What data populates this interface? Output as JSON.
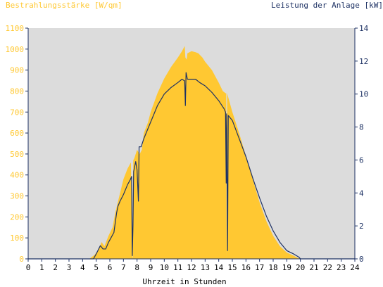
{
  "chart_data": {
    "type": "area",
    "title_left": "Bestrahlungsstärke [W/qm]",
    "title_right": "Leistung der Anlage [kW]",
    "xlabel": "Uhrzeit in Stunden",
    "xlim": [
      0,
      24
    ],
    "x_ticks": [
      "0",
      "1",
      "2",
      "3",
      "4",
      "5",
      "6",
      "7",
      "8",
      "9",
      "10",
      "11",
      "12",
      "13",
      "14",
      "15",
      "16",
      "17",
      "18",
      "19",
      "20",
      "21",
      "22",
      "23",
      "24"
    ],
    "y_left": {
      "label": "Bestrahlungsstärke [W/qm]",
      "ylim": [
        0,
        1100
      ],
      "ticks": [
        "0",
        "100",
        "200",
        "300",
        "400",
        "500",
        "600",
        "700",
        "800",
        "900",
        "1000",
        "1100"
      ]
    },
    "y_right": {
      "label": "Leistung der Anlage [kW]",
      "ylim": [
        0,
        14
      ],
      "ticks": [
        "0",
        "2",
        "4",
        "6",
        "8",
        "10",
        "12",
        "14"
      ]
    },
    "grid": false,
    "colors": {
      "plot_bg": "#dcdcdc",
      "irradiance": "#ffc832",
      "power": "#1e3264",
      "axis": "#1e3264"
    },
    "series": [
      {
        "name": "Bestrahlungsstärke [W/qm]",
        "axis": "left",
        "style": "area",
        "x": [
          0,
          4.5,
          4.9,
          5.2,
          5.4,
          5.6,
          5.9,
          6.2,
          6.4,
          6.7,
          7.0,
          7.3,
          7.55,
          7.65,
          7.68,
          7.72,
          7.8,
          8.0,
          8.2,
          8.35,
          8.5,
          8.8,
          9.0,
          9.5,
          10.0,
          10.5,
          11.0,
          11.3,
          11.5,
          11.55,
          11.65,
          11.7,
          12.0,
          12.3,
          12.5,
          12.8,
          13.0,
          13.5,
          14.0,
          14.3,
          14.5,
          14.55,
          14.58,
          14.62,
          14.7,
          15.0,
          15.5,
          16.0,
          16.5,
          17.0,
          17.5,
          18.0,
          18.5,
          19.0,
          19.5,
          19.8,
          20.0,
          20.2,
          24
        ],
        "values": [
          0,
          0,
          20,
          50,
          80,
          60,
          110,
          150,
          220,
          300,
          380,
          430,
          460,
          10,
          0,
          470,
          480,
          520,
          500,
          520,
          600,
          650,
          700,
          790,
          860,
          915,
          960,
          990,
          1015,
          960,
          950,
          980,
          990,
          985,
          980,
          960,
          940,
          900,
          840,
          800,
          790,
          790,
          10,
          790,
          770,
          700,
          600,
          490,
          380,
          270,
          180,
          110,
          60,
          30,
          15,
          5,
          0,
          0,
          0
        ]
      },
      {
        "name": "Leistung der Anlage [kW]",
        "axis": "right",
        "style": "line",
        "x": [
          0,
          4.8,
          5.0,
          5.3,
          5.5,
          5.7,
          5.9,
          6.1,
          6.3,
          6.5,
          6.6,
          6.75,
          7.0,
          7.3,
          7.5,
          7.6,
          7.65,
          7.7,
          7.75,
          7.9,
          8.0,
          8.1,
          8.15,
          8.3,
          8.5,
          9.0,
          9.5,
          10.0,
          10.5,
          11.0,
          11.3,
          11.5,
          11.55,
          11.6,
          11.65,
          11.7,
          11.8,
          12.0,
          12.3,
          12.6,
          13.0,
          13.5,
          14.0,
          14.4,
          14.5,
          14.55,
          14.58,
          14.65,
          14.7,
          15.0,
          15.5,
          16.0,
          16.5,
          17.0,
          17.5,
          18.0,
          18.5,
          19.0,
          19.5,
          19.9,
          20.0,
          24
        ],
        "values": [
          0,
          0,
          0.3,
          0.8,
          0.6,
          0.6,
          1.0,
          1.3,
          1.6,
          2.8,
          3.2,
          3.5,
          3.9,
          4.5,
          4.8,
          5.0,
          0.2,
          2.0,
          5.3,
          5.9,
          5.4,
          3.5,
          6.8,
          6.8,
          7.3,
          8.3,
          9.3,
          10.0,
          10.4,
          10.7,
          10.9,
          10.8,
          9.3,
          11.3,
          11.1,
          10.9,
          10.9,
          10.9,
          10.9,
          10.7,
          10.5,
          10.1,
          9.6,
          9.1,
          8.9,
          4.6,
          8.8,
          0.5,
          8.7,
          8.4,
          7.3,
          6.2,
          4.9,
          3.7,
          2.6,
          1.7,
          1.0,
          0.5,
          0.3,
          0.1,
          0,
          0
        ]
      }
    ]
  }
}
